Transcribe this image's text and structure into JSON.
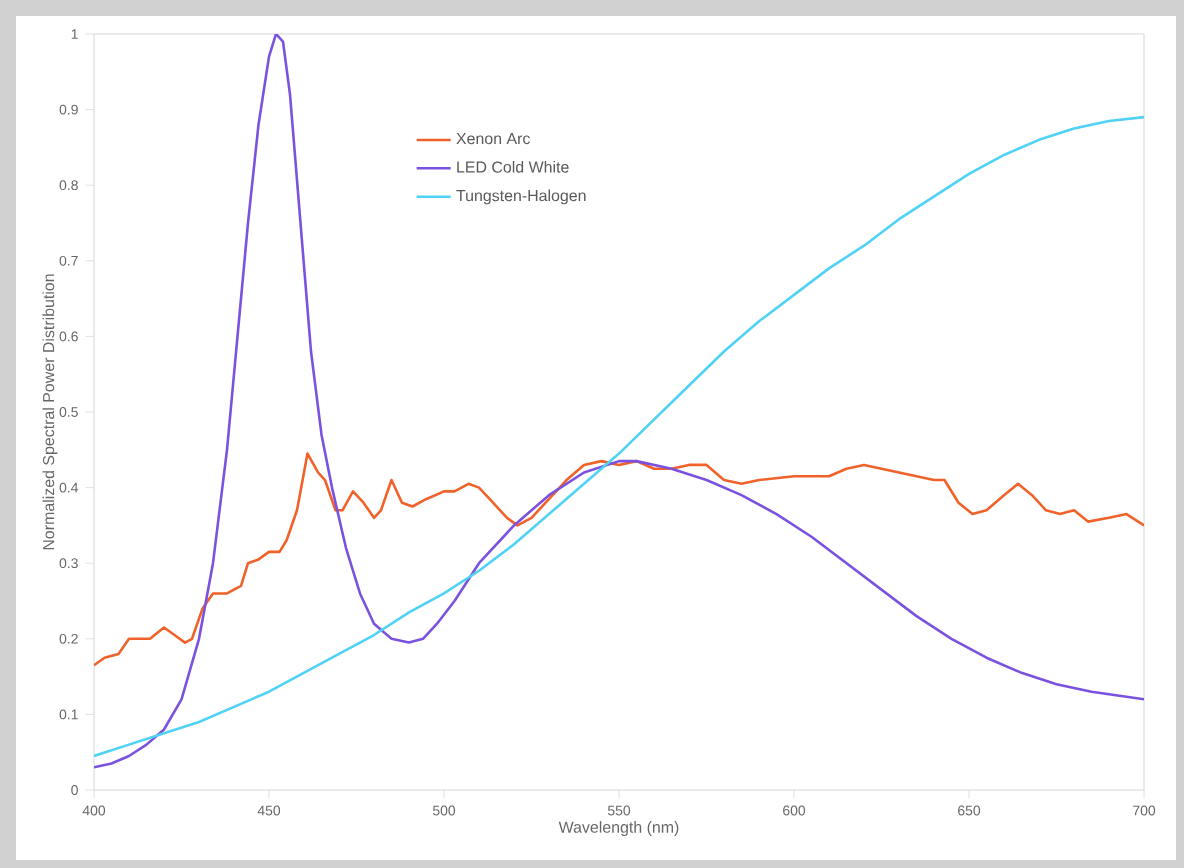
{
  "chart_data": {
    "type": "line",
    "xlabel": "Wavelength (nm)",
    "ylabel": "Normalized Spectral Power Distribution",
    "xlim": [
      400,
      700
    ],
    "xticks": [
      400,
      450,
      500,
      550,
      600,
      650,
      700
    ],
    "ylim": [
      0,
      1
    ],
    "yticks": [
      0,
      0.1,
      0.2,
      0.3,
      0.4,
      0.5,
      0.6,
      0.7,
      0.8,
      0.9,
      1
    ],
    "grid": false,
    "legend": "top",
    "marker": "none",
    "line_style": "solid",
    "series": [
      {
        "name": "Xenon Arc",
        "color": "#f0622a",
        "x": [
          400,
          403,
          407,
          410,
          413,
          416,
          420,
          423,
          426,
          428,
          431,
          434,
          438,
          442,
          444,
          447,
          450,
          453,
          455,
          458,
          461,
          464,
          466,
          469,
          471,
          474,
          477,
          480,
          482,
          485,
          488,
          491,
          495,
          500,
          503,
          507,
          510,
          514,
          518,
          521,
          525,
          530,
          535,
          540,
          545,
          550,
          555,
          560,
          565,
          570,
          575,
          580,
          585,
          590,
          600,
          610,
          615,
          620,
          630,
          640,
          643,
          647,
          651,
          655,
          660,
          664,
          668,
          672,
          676,
          680,
          684,
          690,
          695,
          700
        ],
        "values": [
          0.165,
          0.175,
          0.18,
          0.2,
          0.2,
          0.2,
          0.215,
          0.205,
          0.195,
          0.2,
          0.24,
          0.26,
          0.26,
          0.27,
          0.3,
          0.305,
          0.315,
          0.315,
          0.33,
          0.37,
          0.445,
          0.42,
          0.41,
          0.37,
          0.37,
          0.395,
          0.38,
          0.36,
          0.37,
          0.41,
          0.38,
          0.375,
          0.385,
          0.395,
          0.395,
          0.405,
          0.4,
          0.38,
          0.36,
          0.35,
          0.36,
          0.385,
          0.41,
          0.43,
          0.435,
          0.43,
          0.435,
          0.425,
          0.425,
          0.43,
          0.43,
          0.41,
          0.405,
          0.41,
          0.415,
          0.415,
          0.425,
          0.43,
          0.42,
          0.41,
          0.41,
          0.38,
          0.365,
          0.37,
          0.39,
          0.405,
          0.39,
          0.37,
          0.365,
          0.37,
          0.355,
          0.36,
          0.365,
          0.35
        ]
      },
      {
        "name": "LED Cold White",
        "color": "#7b52e0",
        "x": [
          400,
          405,
          410,
          415,
          420,
          425,
          430,
          434,
          438,
          441,
          444,
          447,
          450,
          452,
          454,
          456,
          459,
          462,
          465,
          468,
          472,
          476,
          480,
          485,
          490,
          494,
          498,
          503,
          510,
          520,
          530,
          540,
          550,
          555,
          565,
          575,
          585,
          595,
          605,
          615,
          625,
          635,
          645,
          655,
          665,
          675,
          685,
          700
        ],
        "values": [
          0.03,
          0.035,
          0.045,
          0.06,
          0.08,
          0.12,
          0.2,
          0.3,
          0.45,
          0.6,
          0.75,
          0.88,
          0.97,
          1.0,
          0.99,
          0.92,
          0.75,
          0.58,
          0.47,
          0.4,
          0.32,
          0.26,
          0.22,
          0.2,
          0.195,
          0.2,
          0.22,
          0.25,
          0.3,
          0.35,
          0.39,
          0.42,
          0.435,
          0.435,
          0.425,
          0.41,
          0.39,
          0.365,
          0.335,
          0.3,
          0.265,
          0.23,
          0.2,
          0.175,
          0.155,
          0.14,
          0.13,
          0.12
        ]
      },
      {
        "name": "Tungsten-Halogen",
        "color": "#4fd2f5",
        "x": [
          400,
          410,
          420,
          430,
          440,
          450,
          460,
          470,
          480,
          490,
          500,
          510,
          520,
          530,
          540,
          550,
          560,
          570,
          580,
          590,
          600,
          610,
          620,
          630,
          640,
          650,
          660,
          670,
          680,
          690,
          700
        ],
        "values": [
          0.045,
          0.06,
          0.075,
          0.09,
          0.11,
          0.13,
          0.155,
          0.18,
          0.205,
          0.235,
          0.26,
          0.29,
          0.325,
          0.365,
          0.405,
          0.445,
          0.49,
          0.535,
          0.58,
          0.62,
          0.655,
          0.69,
          0.72,
          0.755,
          0.785,
          0.815,
          0.84,
          0.86,
          0.875,
          0.885,
          0.89
        ]
      }
    ]
  }
}
